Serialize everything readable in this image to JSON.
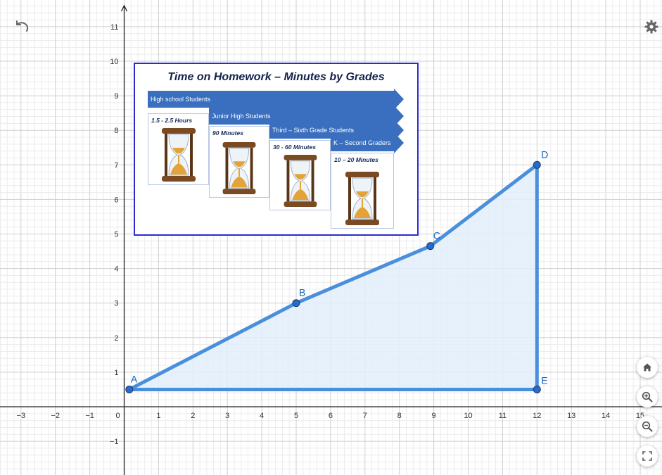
{
  "x_ticks": [
    "−3",
    "−2",
    "−1",
    "0",
    "1",
    "2",
    "3",
    "4",
    "5",
    "6",
    "7",
    "8",
    "9",
    "10",
    "11",
    "12",
    "13",
    "14",
    "15"
  ],
  "y_ticks": [
    "−1",
    "1",
    "2",
    "3",
    "4",
    "5",
    "6",
    "7",
    "8",
    "9",
    "10",
    "11"
  ],
  "points": [
    {
      "label": "A",
      "x": 0.15,
      "y": 0.5
    },
    {
      "label": "B",
      "x": 5,
      "y": 3
    },
    {
      "label": "C",
      "x": 8.9,
      "y": 4.65
    },
    {
      "label": "D",
      "x": 12,
      "y": 7
    },
    {
      "label": "E",
      "x": 12,
      "y": 0.5
    }
  ],
  "colors": {
    "polygon_stroke": "#4a8fdc",
    "polygon_fill": "#e3eefb",
    "point_fill": "#2a6ac8",
    "label": "#1565c0"
  },
  "toolbar": {
    "undo_icon": "undo-icon",
    "settings_icon": "gear-icon"
  },
  "zoom_controls": [
    "home-icon",
    "zoom-in-icon",
    "zoom-out-icon",
    "fullscreen-icon"
  ],
  "card": {
    "title": "Time on Homework – Minutes by Grades",
    "bands": [
      "High school Students",
      "Junior High Students",
      "Third – Sixth Grade Students",
      "K – Second Graders"
    ],
    "tiles": [
      "1.5 - 2.5 Hours",
      "90 Minutes",
      "30 - 60 Minutes",
      "10 – 20 Minutes"
    ]
  }
}
